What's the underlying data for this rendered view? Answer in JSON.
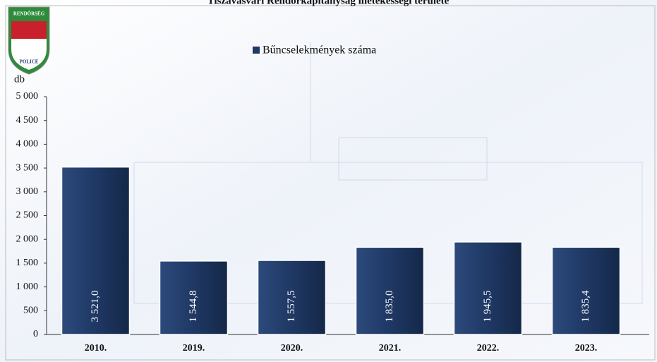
{
  "logo_text": {
    "top": "RENDŐRSÉG",
    "bottom": "POLICE"
  },
  "chart_data": {
    "type": "bar",
    "title": "Tiszavasvári Rendőrkapitányság illetékességi területe",
    "y_label": "db",
    "categories": [
      "2010.",
      "2019.",
      "2020.",
      "2021.",
      "2022.",
      "2023."
    ],
    "series": [
      {
        "name": "Bűncselekmények száma",
        "color": "#1f3864",
        "values": [
          3521.0,
          1544.8,
          1557.5,
          1835.0,
          1945.5,
          1835.4
        ],
        "value_labels": [
          "3 521,0",
          "1 544,8",
          "1 557,5",
          "1 835,0",
          "1 945,5",
          "1 835,4"
        ]
      }
    ],
    "ylim": [
      0,
      5000
    ],
    "yticks": [
      0,
      500,
      {
        "value": 1000,
        "label": "1 000"
      },
      {
        "value": 1500,
        "label": "1 500"
      },
      {
        "value": 2000,
        "label": "2 000"
      },
      {
        "value": 2500,
        "label": "2 500"
      },
      {
        "value": 3000,
        "label": "3 000"
      },
      {
        "value": 3500,
        "label": "3 500"
      },
      {
        "value": 4000,
        "label": "4 000"
      },
      {
        "value": 4500,
        "label": "4 500"
      },
      {
        "value": 5000,
        "label": "5 000"
      }
    ],
    "legend": "top"
  }
}
